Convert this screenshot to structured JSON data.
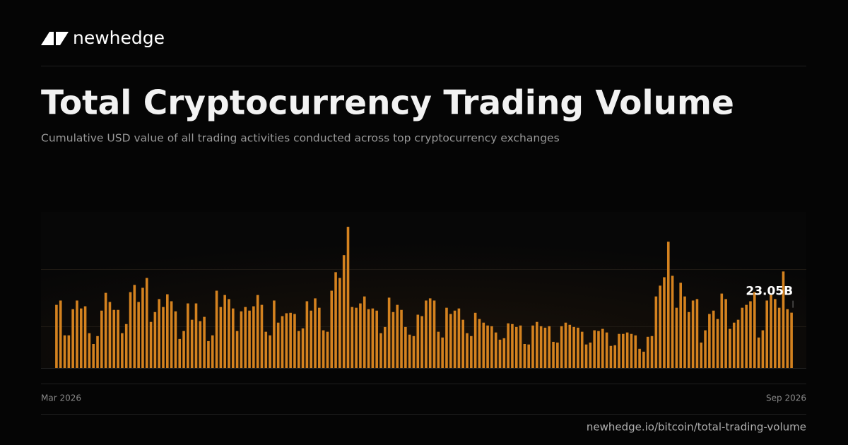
{
  "brand": "newhedge",
  "footer_url": "newhedge.io/bitcoin/total-trading-volume",
  "chart_data": {
    "type": "bar",
    "title": "Total Cryptocurrency Trading Volume",
    "subtitle": "Cumulative USD value of all trading activities conducted across top cryptocurrency exchanges",
    "xtick_labels": [
      "Mar 2026",
      "Sep 2026"
    ],
    "color": "#d4821f",
    "ylim": [
      0,
      65
    ],
    "values": [
      26.3,
      28.1,
      13.6,
      13.6,
      24.5,
      28.1,
      24.8,
      25.7,
      14.5,
      10.0,
      13.3,
      23.9,
      31.3,
      27.5,
      24.2,
      24.2,
      14.5,
      18.3,
      31.6,
      34.6,
      27.5,
      33.4,
      37.5,
      19.2,
      23.3,
      28.7,
      25.4,
      30.7,
      27.8,
      23.6,
      12.1,
      15.4,
      26.9,
      20.1,
      26.9,
      19.5,
      21.3,
      11.2,
      13.6,
      32.2,
      25.4,
      30.4,
      28.7,
      24.8,
      15.4,
      23.6,
      25.4,
      23.9,
      25.7,
      30.4,
      26.3,
      15.1,
      13.6,
      28.1,
      18.9,
      21.6,
      22.8,
      23.0,
      22.5,
      15.4,
      16.5,
      27.8,
      23.9,
      29.0,
      25.1,
      15.7,
      15.1,
      32.2,
      39.9,
      37.5,
      47.0,
      58.8,
      25.4,
      25.1,
      26.9,
      29.8,
      24.5,
      24.8,
      23.9,
      14.5,
      17.1,
      29.3,
      23.3,
      26.3,
      24.2,
      17.1,
      13.9,
      13.3,
      22.2,
      21.6,
      28.1,
      29.0,
      28.1,
      15.1,
      12.7,
      25.1,
      22.5,
      23.9,
      24.8,
      20.1,
      14.5,
      13.3,
      23.0,
      20.4,
      18.9,
      17.7,
      17.4,
      14.8,
      11.8,
      12.4,
      18.6,
      18.3,
      17.1,
      17.7,
      10.0,
      9.8,
      17.7,
      19.2,
      17.4,
      16.8,
      17.4,
      10.9,
      10.6,
      17.4,
      18.9,
      18.0,
      17.1,
      16.8,
      15.1,
      9.8,
      10.6,
      15.7,
      15.4,
      16.3,
      14.8,
      9.2,
      9.5,
      14.2,
      14.2,
      14.8,
      14.2,
      13.6,
      8.0,
      6.8,
      13.0,
      13.3,
      29.8,
      34.3,
      37.8,
      52.6,
      38.4,
      25.1,
      35.5,
      29.8,
      23.3,
      28.1,
      28.7,
      10.6,
      15.7,
      22.5,
      23.9,
      20.4,
      31.0,
      28.7,
      16.3,
      18.9,
      20.1,
      25.1,
      26.3,
      27.8,
      31.6,
      12.7,
      15.7,
      28.1,
      30.4,
      28.7,
      25.1,
      40.2,
      24.5,
      23.05
    ],
    "value_labels": [
      null,
      null,
      null,
      null,
      null,
      null,
      null,
      null,
      null,
      null,
      null,
      null,
      null,
      null,
      null,
      null,
      null,
      null,
      null,
      null,
      null,
      null,
      null,
      null,
      null,
      null,
      null,
      null,
      null,
      null,
      null,
      null,
      null,
      null,
      null,
      null,
      null,
      null,
      null,
      null,
      null,
      null,
      null,
      null,
      null,
      null,
      null,
      null,
      null,
      null,
      null,
      null,
      null,
      null,
      null,
      null,
      null,
      null,
      null,
      null,
      null,
      null,
      null,
      null,
      null,
      null,
      null,
      null,
      null,
      null,
      null,
      null,
      null,
      null,
      null,
      null,
      null,
      null,
      null,
      null,
      null,
      null,
      null,
      null,
      null,
      null,
      null,
      null,
      null,
      null,
      null,
      null,
      null,
      null,
      null,
      null,
      null,
      null,
      null,
      null,
      null,
      null,
      null,
      null,
      null,
      null,
      null,
      null,
      null,
      null,
      null,
      null,
      null,
      null,
      null,
      null,
      null,
      null,
      null,
      null,
      null,
      null,
      null,
      null,
      null,
      null,
      null,
      null,
      null,
      null,
      null,
      null,
      null,
      null,
      null,
      null,
      null,
      null,
      null,
      null,
      null,
      null,
      null,
      null,
      null,
      null,
      null,
      null,
      null,
      null,
      null,
      null,
      null,
      null,
      null,
      null,
      null,
      null,
      null,
      null,
      null,
      null,
      null,
      null,
      null,
      null,
      null,
      null,
      null,
      null,
      null,
      null,
      null,
      null,
      null,
      null,
      null,
      null,
      null,
      "23.05B"
    ]
  }
}
